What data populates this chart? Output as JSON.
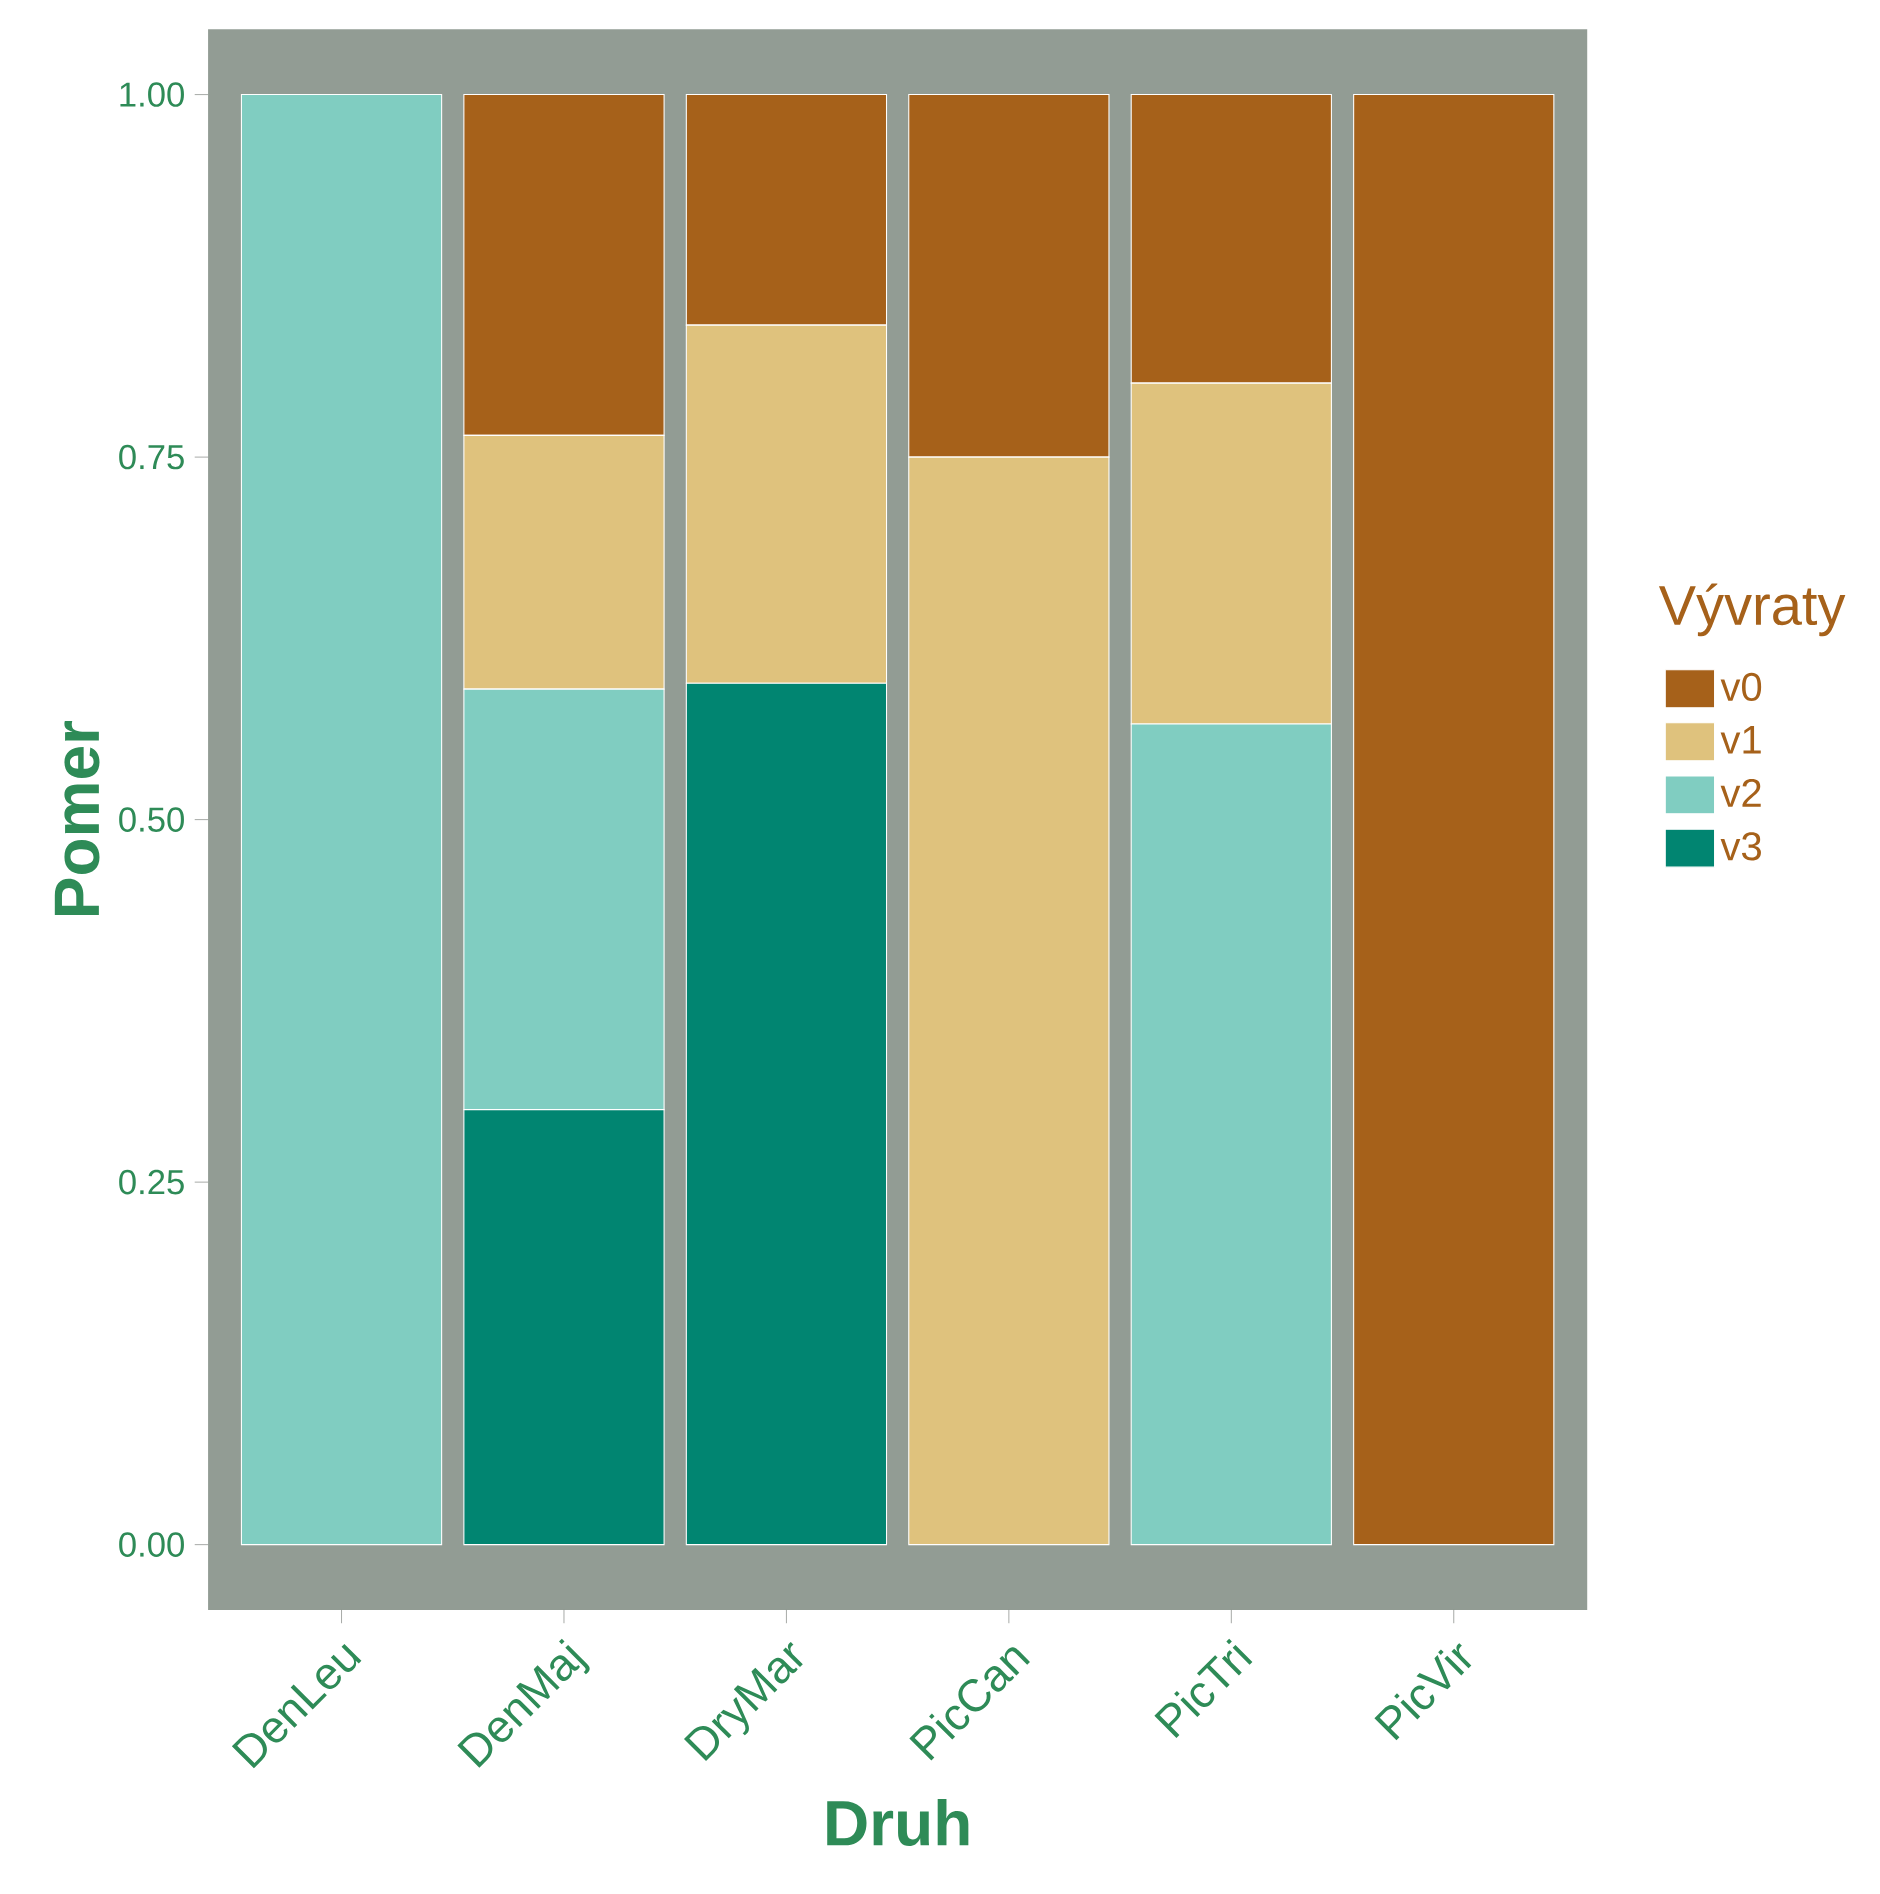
{
  "chart_data": {
    "type": "bar",
    "stacked": true,
    "xlabel": "Druh",
    "ylabel": "Pomer",
    "legend_title": "Vývraty",
    "legend": "right",
    "categories": [
      "DenLeu",
      "DenMaj",
      "DryMar",
      "PicCan",
      "PicTri",
      "PicVir"
    ],
    "series": [
      {
        "name": "v3",
        "color": "#018571",
        "values": [
          0,
          0.3,
          0.594,
          0,
          0,
          0
        ]
      },
      {
        "name": "v2",
        "color": "#80cdc1",
        "values": [
          1,
          0.29,
          0,
          0,
          0.566,
          0
        ]
      },
      {
        "name": "v1",
        "color": "#dfc27d",
        "values": [
          0,
          0.175,
          0.247,
          0.75,
          0.235,
          0
        ]
      },
      {
        "name": "v0",
        "color": "#a6611a",
        "values": [
          0,
          0.235,
          0.159,
          0.25,
          0.199,
          1
        ]
      }
    ],
    "ylim": [
      -0.045,
      1.045
    ],
    "yticks": [
      {
        "value": 0,
        "label": "0.00"
      },
      {
        "value": 0.25,
        "label": "0.25"
      },
      {
        "value": 0.5,
        "label": "0.50"
      },
      {
        "value": 0.75,
        "label": "0.75"
      },
      {
        "value": 1,
        "label": "1.00"
      }
    ],
    "grid": false
  }
}
